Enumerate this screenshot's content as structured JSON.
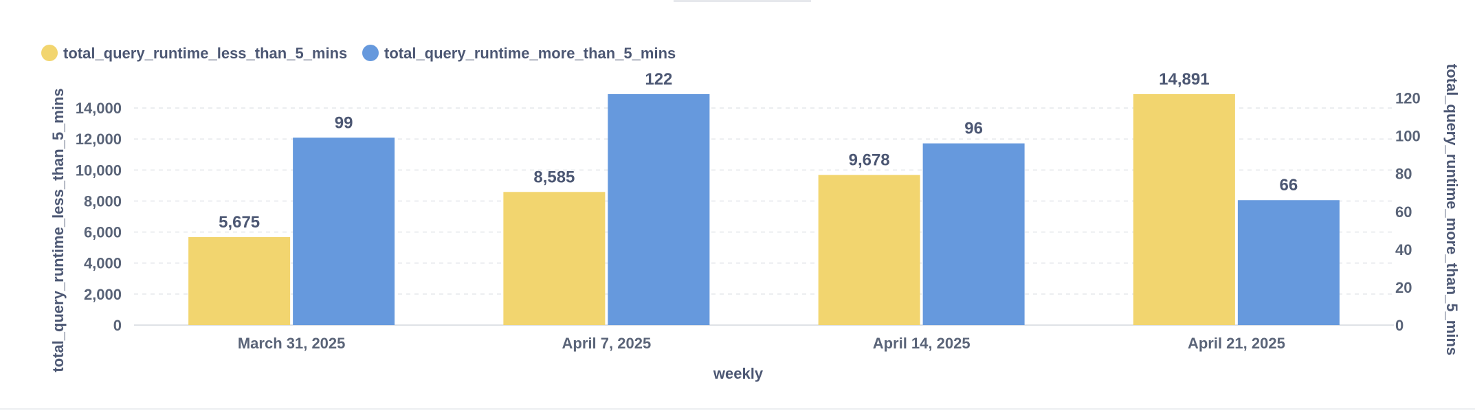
{
  "chart_data": {
    "type": "bar",
    "categories": [
      "March 31, 2025",
      "April 7, 2025",
      "April 14, 2025",
      "April 21, 2025"
    ],
    "xlabel": "weekly",
    "series": [
      {
        "name": "total_query_runtime_less_than_5_mins",
        "axis": "left",
        "color": "#F2D56F",
        "values": [
          5675,
          8585,
          9678,
          14891
        ],
        "labels": [
          "5,675",
          "8,585",
          "9,678",
          "14,891"
        ]
      },
      {
        "name": "total_query_runtime_more_than_5_mins",
        "axis": "right",
        "color": "#6699DD",
        "values": [
          99,
          122,
          96,
          66
        ],
        "labels": [
          "99",
          "122",
          "96",
          "66"
        ]
      }
    ],
    "y_left": {
      "label": "total_query_runtime_less_than_5_mins",
      "range": [
        0,
        14891
      ],
      "ticks": [
        0,
        2000,
        4000,
        6000,
        8000,
        10000,
        12000,
        14000
      ],
      "tick_labels": [
        "0",
        "2,000",
        "4,000",
        "6,000",
        "8,000",
        "10,000",
        "12,000",
        "14,000"
      ]
    },
    "y_right": {
      "label": "total_query_runtime_more_than_5_mins",
      "range": [
        0,
        122
      ],
      "ticks": [
        0,
        20,
        40,
        60,
        80,
        100,
        120
      ],
      "tick_labels": [
        "0",
        "20",
        "40",
        "60",
        "80",
        "100",
        "120"
      ]
    },
    "grid": true,
    "legend_position": "top-left"
  }
}
